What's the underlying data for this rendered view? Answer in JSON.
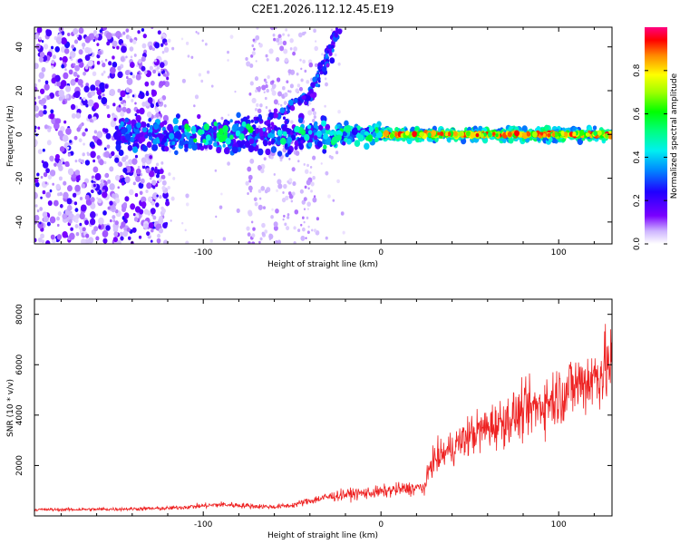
{
  "title": "C2E1.2026.112.12.45.E19",
  "chart_data": [
    {
      "type": "heatmap",
      "xlabel": "Height of straight line (km)",
      "ylabel": "Frequency (Hz)",
      "xlim": [
        -195,
        130
      ],
      "ylim": [
        -50,
        49
      ],
      "x_ticks": [
        -100,
        0,
        100
      ],
      "x_tick_labels": [
        "-100",
        "0",
        "100"
      ],
      "y_ticks": [
        -40,
        -20,
        0,
        20,
        40
      ],
      "y_tick_labels": [
        "-40",
        "-20",
        "0",
        "20",
        "40"
      ],
      "colorbar": {
        "label": "Normalized spectral amplitude",
        "range": [
          0,
          1
        ],
        "ticks": [
          0.0,
          0.2,
          0.4,
          0.6,
          0.8
        ],
        "tick_labels": [
          "0.0",
          "0.2",
          "0.4",
          "0.6",
          "0.8"
        ]
      },
      "features": [
        {
          "name": "carrier line",
          "x_range": [
            -150,
            130
          ],
          "frequency_hz": 0,
          "peak_amplitude": 0.95
        },
        {
          "name": "rising branch",
          "x": [
            -100,
            -60,
            -40,
            -30,
            -25
          ],
          "frequency_hz": [
            2,
            8,
            18,
            35,
            48
          ],
          "peak_amplitude": 0.35
        },
        {
          "name": "wideband noise region",
          "x_range": [
            -195,
            -120
          ],
          "frequency_hz_range": [
            -50,
            49
          ],
          "peak_amplitude": 0.25
        }
      ]
    },
    {
      "type": "line",
      "xlabel": "Height of straight line (km)",
      "ylabel": "SNR (10 * v/v)",
      "xlim": [
        -195,
        130
      ],
      "ylim": [
        0,
        8600
      ],
      "x_ticks": [
        -100,
        0,
        100
      ],
      "x_tick_labels": [
        "-100",
        "0",
        "100"
      ],
      "y_ticks": [
        2000,
        4000,
        6000,
        8000
      ],
      "y_tick_labels": [
        "2000",
        "4000",
        "6000",
        "8000"
      ],
      "series": [
        {
          "name": "SNR",
          "color": "#ee2222",
          "x": [
            -195,
            -180,
            -160,
            -140,
            -120,
            -110,
            -100,
            -90,
            -80,
            -70,
            -60,
            -50,
            -40,
            -30,
            -20,
            -10,
            0,
            10,
            20,
            25,
            28,
            32,
            40,
            50,
            60,
            70,
            80,
            90,
            100,
            110,
            120,
            125,
            130
          ],
          "values": [
            250,
            250,
            260,
            280,
            300,
            350,
            400,
            450,
            420,
            380,
            360,
            420,
            600,
            750,
            850,
            900,
            950,
            1050,
            1100,
            1150,
            2100,
            2300,
            2700,
            3200,
            3500,
            3800,
            4100,
            4400,
            4800,
            5200,
            5500,
            5800,
            6000
          ]
        }
      ]
    }
  ]
}
